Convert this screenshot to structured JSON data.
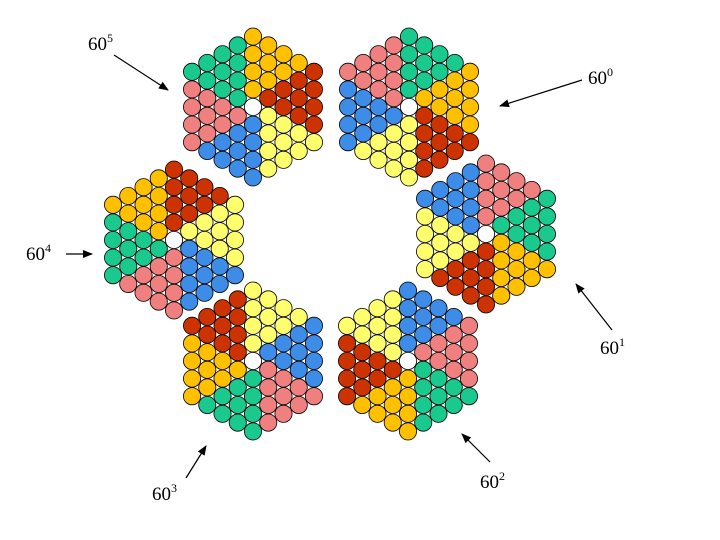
{
  "colors": {
    "pink": "#f08080",
    "teal": "#19c98e",
    "orange": "#ffc000",
    "red": "#cc3300",
    "yellow": "#ffff6e",
    "blue": "#3c8ce8",
    "center": "#ffffff",
    "outline": "#000000"
  },
  "rotation_step_degrees": 60,
  "hexagons": [
    {
      "id": "60-0",
      "label_base": "60",
      "label_exp": "0",
      "rotation_steps": 0
    },
    {
      "id": "60-1",
      "label_base": "60",
      "label_exp": "1",
      "rotation_steps": 1
    },
    {
      "id": "60-2",
      "label_base": "60",
      "label_exp": "2",
      "rotation_steps": 2
    },
    {
      "id": "60-3",
      "label_base": "60",
      "label_exp": "3",
      "rotation_steps": 3
    },
    {
      "id": "60-4",
      "label_base": "60",
      "label_exp": "4",
      "rotation_steps": 4
    },
    {
      "id": "60-5",
      "label_base": "60",
      "label_exp": "5",
      "rotation_steps": 5
    }
  ],
  "sector_color_order": [
    "pink",
    "teal",
    "orange",
    "red",
    "yellow",
    "blue"
  ]
}
